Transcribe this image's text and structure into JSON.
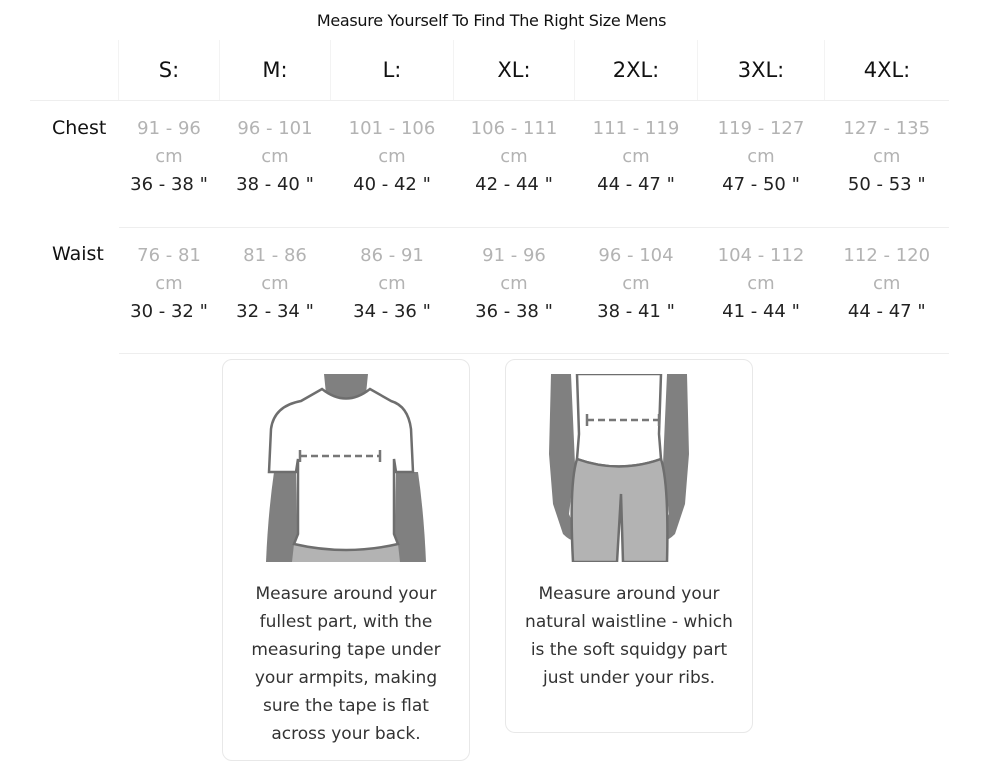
{
  "title": "Measure Yourself To Find The Right Size Mens",
  "sizes": [
    "S:",
    "M:",
    "L:",
    "XL:",
    "2XL:",
    "3XL:",
    "4XL:"
  ],
  "rows": [
    {
      "label": "Chest",
      "cm": [
        "91 - 96",
        "96 - 101",
        "101 - 106",
        "106 - 111",
        "111 - 119",
        "119 - 127",
        "127 - 135"
      ],
      "unit": "cm",
      "inches": [
        "36 - 38 \"",
        "38 - 40 \"",
        "40 - 42 \"",
        "42 - 44 \"",
        "44 - 47 \"",
        "47 - 50 \"",
        "50 - 53 \""
      ]
    },
    {
      "label": "Waist",
      "cm": [
        "76 - 81",
        "81 - 86",
        "86 - 91",
        "91 - 96",
        "96 - 104",
        "104 - 112",
        "112 - 120"
      ],
      "unit": "cm",
      "inches": [
        "30 - 32 \"",
        "32 - 34 \"",
        "34 - 36 \"",
        "36 - 38 \"",
        "38 - 41 \"",
        "41 - 44 \"",
        "44 - 47 \""
      ]
    }
  ],
  "cards": [
    {
      "icon": "chest-measure-illustration",
      "text": "Measure around your fullest part, with the measuring tape under your armpits, making sure the tape is flat across your back."
    },
    {
      "icon": "waist-measure-illustration",
      "text": "Measure around your natural waistline - which is the soft squidgy part just under your ribs."
    }
  ],
  "colors": {
    "skin": "#808080",
    "pants": "#b3b3b3",
    "outline": "#6e6e6e",
    "cm_text": "#b3b3b3"
  }
}
